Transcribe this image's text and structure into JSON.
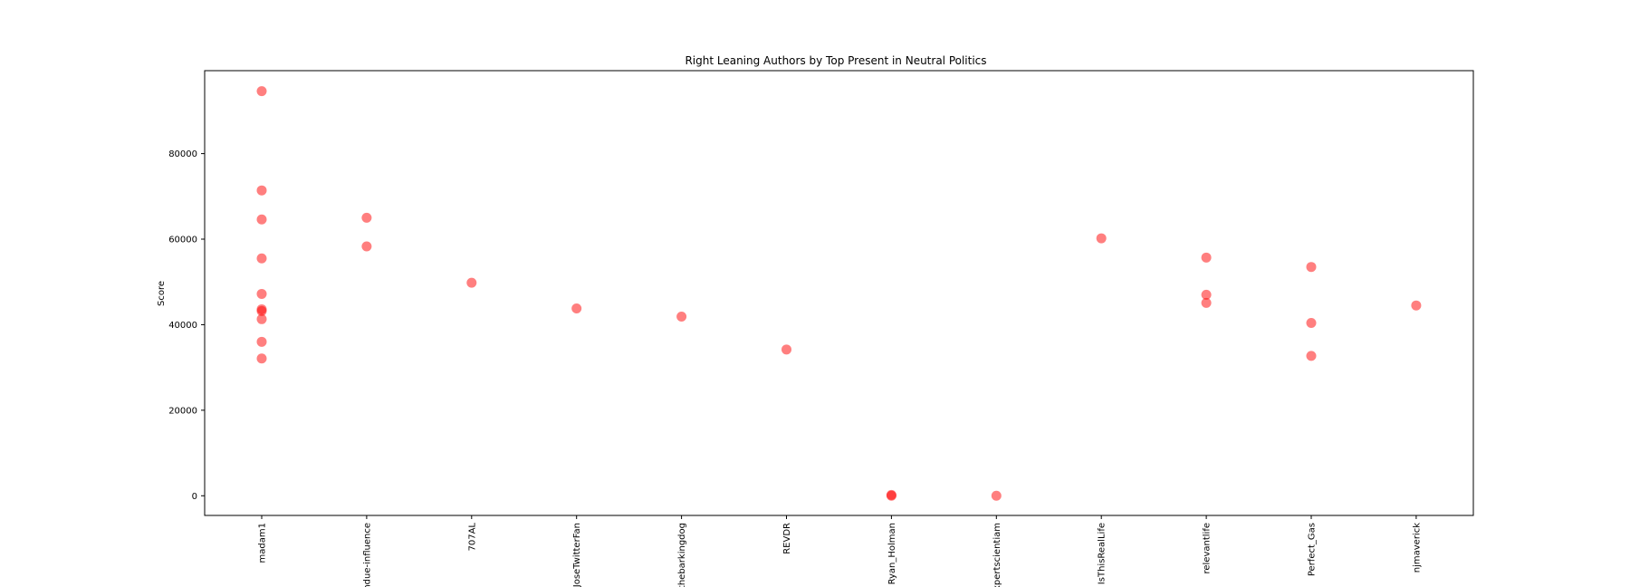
{
  "chart_data": {
    "type": "scatter",
    "title": "Right Leaning Authors by Top Present in Neutral Politics",
    "xlabel": "",
    "ylabel": "Score",
    "categories": [
      "madam1",
      "undue-influence",
      "707AL",
      "JoseTwitterFan",
      "thebarkingdog",
      "REVDR",
      "Ryan_Holman",
      "expertscientiam",
      "IsThisRealLife",
      "relevantlife",
      "Perfect_Gas",
      "njmaverick"
    ],
    "ylim": [
      -4600,
      99400
    ],
    "y_ticks": [
      0,
      20000,
      40000,
      60000,
      80000
    ],
    "y_tick_labels": [
      "0",
      "20000",
      "40000",
      "60000",
      "80000"
    ],
    "grid": false,
    "marker_color": "#ff0000",
    "marker_alpha": 0.5,
    "points": [
      {
        "category": "madam1",
        "y": 94600
      },
      {
        "category": "madam1",
        "y": 71400
      },
      {
        "category": "madam1",
        "y": 64600
      },
      {
        "category": "madam1",
        "y": 55500
      },
      {
        "category": "madam1",
        "y": 47200
      },
      {
        "category": "madam1",
        "y": 43600
      },
      {
        "category": "madam1",
        "y": 43200
      },
      {
        "category": "madam1",
        "y": 41300
      },
      {
        "category": "madam1",
        "y": 36000
      },
      {
        "category": "madam1",
        "y": 32100
      },
      {
        "category": "undue-influence",
        "y": 65000
      },
      {
        "category": "undue-influence",
        "y": 58300
      },
      {
        "category": "707AL",
        "y": 49800
      },
      {
        "category": "JoseTwitterFan",
        "y": 43800
      },
      {
        "category": "thebarkingdog",
        "y": 41900
      },
      {
        "category": "REVDR",
        "y": 34200
      },
      {
        "category": "Ryan_Holman",
        "y": 200
      },
      {
        "category": "Ryan_Holman",
        "y": 0
      },
      {
        "category": "expertscientiam",
        "y": 0
      },
      {
        "category": "IsThisRealLife",
        "y": 60200
      },
      {
        "category": "relevantlife",
        "y": 55700
      },
      {
        "category": "relevantlife",
        "y": 47000
      },
      {
        "category": "relevantlife",
        "y": 45100
      },
      {
        "category": "Perfect_Gas",
        "y": 53500
      },
      {
        "category": "Perfect_Gas",
        "y": 40400
      },
      {
        "category": "Perfect_Gas",
        "y": 32700
      },
      {
        "category": "njmaverick",
        "y": 44500
      }
    ]
  }
}
